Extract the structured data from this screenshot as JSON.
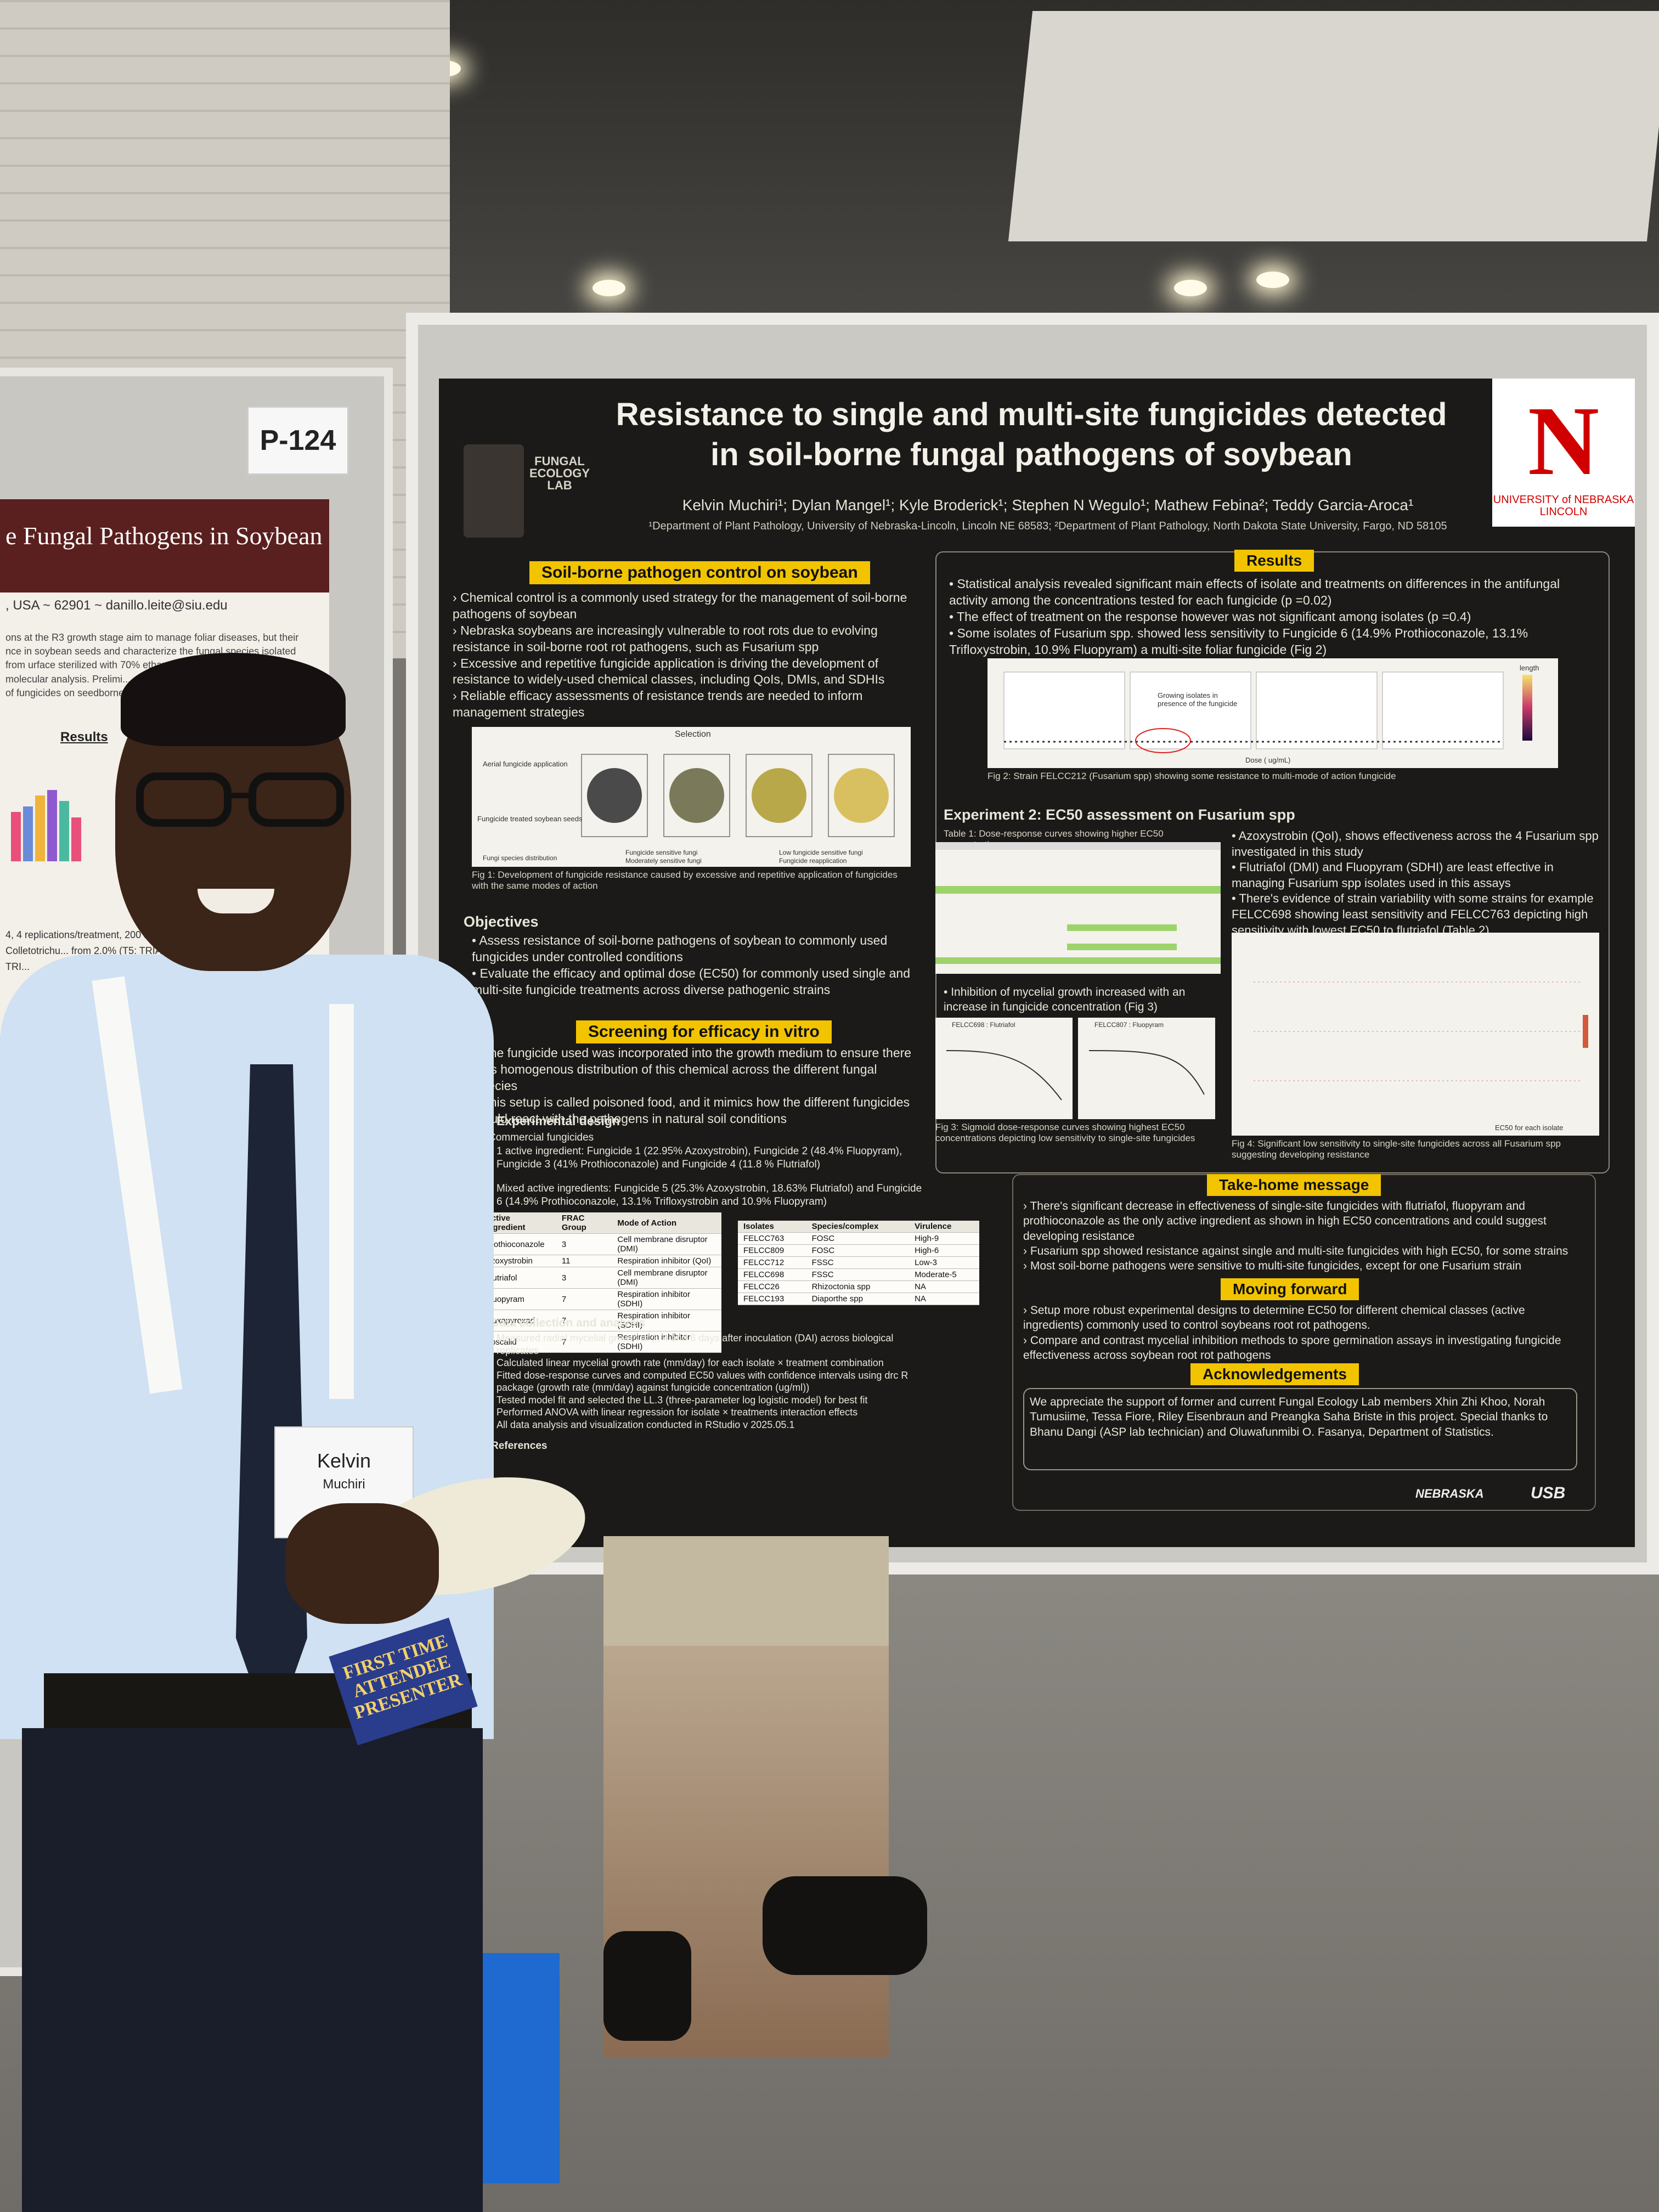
{
  "sign": {
    "label": "P-124"
  },
  "left_poster": {
    "title": "e Fungal Pathogens in Soybean",
    "contact": ", USA ~ 62901 ~ danillo.leite@siu.edu",
    "body": "ons at the R3 growth stage aim to manage foliar diseases, but their nce in soybean seeds and characterize the fungal species isolated from urface sterilized with 70% ethanol (1 min) and ... hology and molecular analysis. Prelimi... observed among treatments, sugges... of fungicides on seedborne fungi is cru...",
    "results": "Results",
    "notes": "4, 4 replications/treatment, 200 seeds t... ), Alternaria (0 – 4%), Colletotrichu... from 2.0% (T5: TRIAZOLE (Lim... ate) to 10.5% (T11: TRI..."
  },
  "poster": {
    "title_line1": "Resistance to single and multi-site fungicides detected",
    "title_line2": "in soil-borne fungal pathogens of soybean",
    "authors": "Kelvin Muchiri¹; Dylan Mangel¹; Kyle Broderick¹; Stephen N Wegulo¹; Mathew Febina²; Teddy Garcia-Aroca¹",
    "affiliations": "¹Department of Plant Pathology, University of Nebraska-Lincoln, Lincoln NE 68583; ²Department of Plant Pathology, North Dakota State University, Fargo, ND 58105",
    "lab_logo": "FUNGAL ECOLOGY LAB",
    "unl_logo": {
      "mark": "N",
      "text": "UNIVERSITY of NEBRASKA LINCOLN"
    },
    "section1": {
      "heading": "Soil-borne pathogen control on soybean",
      "bullets": [
        "Chemical control is a commonly used strategy for the management of soil-borne pathogens of soybean",
        "Nebraska soybeans are increasingly vulnerable to root rots due to evolving resistance in soil-borne root rot pathogens, such as Fusarium spp",
        "Excessive and repetitive fungicide application is driving the development of resistance to widely-used chemical classes, including QoIs, DMIs, and SDHIs",
        "Reliable efficacy assessments of resistance trends are needed to inform management strategies"
      ],
      "fig_caption": "Fig 1: Development of fungicide resistance caused by excessive and repetitive application of fungicides with the same modes of action",
      "fig_labels": [
        "Selection",
        "Aerial fungicide application",
        "Fungicide treated soybean seeds",
        "Fungi species distribution",
        "Fungicide sensitive fungi",
        "Moderately sensitive fungi",
        "Low fungicide sensitive fungi",
        "Fungicide reapplication"
      ]
    },
    "objectives": {
      "heading": "Objectives",
      "bullets": [
        "Assess resistance of soil-borne pathogens of soybean to commonly used fungicides under controlled conditions",
        "Evaluate the efficacy and optimal dose (EC50) for commonly used single and multi-site fungicide treatments across diverse pathogenic strains"
      ]
    },
    "screening": {
      "heading": "Screening for efficacy in vitro",
      "bullets": [
        "The fungicide used was incorporated into the growth medium to ensure there was homogenous distribution of this chemical across the different fungal species",
        "This setup is called poisoned food, and it mimics how the different fungicides would react with the pathogens in natural soil conditions"
      ],
      "design_heading": "Experimental design",
      "commercial": "Commercial fungicides",
      "single": "1 active ingredient: Fungicide 1 (22.95% Azoxystrobin), Fungicide 2 (48.4% Fluopyram), Fungicide 3 (41% Prothioconazole) and Fungicide 4 (11.8 % Flutriafol)",
      "mixed": "Mixed active ingredients: Fungicide 5 (25.3% Azoxystrobin, 18.63% Flutriafol) and Fungicide 6 (14.9% Prothioconazole, 13.1% Trifloxystrobin and 10.9% Fluopyram)",
      "ai_table": {
        "headers": [
          "Active ingredient",
          "FRAC Group",
          "Mode of Action"
        ],
        "rows": [
          [
            "Prothioconazole",
            "3",
            "Cell membrane disruptor (DMI)"
          ],
          [
            "Azoxystrobin",
            "11",
            "Respiration inhibitor (QoI)"
          ],
          [
            "Flutriafol",
            "3",
            "Cell membrane disruptor (DMI)"
          ],
          [
            "Fluopyram",
            "7",
            "Respiration inhibitor (SDHI)"
          ],
          [
            "Fluxapyroxad",
            "7",
            "Respiration inhibitor (SDHI)"
          ],
          [
            "Boscalid",
            "7",
            "Respiration inhibitor (SDHI)"
          ]
        ]
      },
      "isolate_table": {
        "headers": [
          "Isolates",
          "Species/complex",
          "Virulence"
        ],
        "rows": [
          [
            "FELCC763",
            "FOSC",
            "High-9"
          ],
          [
            "FELCC809",
            "FOSC",
            "High-6"
          ],
          [
            "FELCC712",
            "FSSC",
            "Low-3"
          ],
          [
            "FELCC698",
            "FSSC",
            "Moderate-5"
          ],
          [
            "FELCC26",
            "Rhizoctonia spp",
            "NA"
          ],
          [
            "FELCC193",
            "Diaporthe spp",
            "NA"
          ]
        ]
      },
      "data_heading": "Data collection and analysis",
      "data_bullets": [
        "Measured radial mycelial growth at 2, 4 and 6 days after inoculation (DAI) across biological replicates",
        "Calculated linear mycelial growth rate (mm/day) for each isolate × treatment combination",
        "Fitted dose-response curves and computed EC50 values with confidence intervals using drc R package (growth rate (mm/day) against fungicide concentration (ug/ml))",
        "Tested model fit and selected the LL.3 (three-parameter log logistic model) for best fit",
        "Performed ANOVA with linear regression for isolate × treatments interaction effects",
        "All data analysis and visualization conducted in RStudio v 2025.05.1"
      ],
      "references": "References"
    },
    "results": {
      "heading": "Results",
      "bullets": [
        "Statistical analysis revealed significant main effects of isolate and treatments on differences in the antifungal activity among the concentrations tested for each fungicide (p =0.02)",
        "The effect of treatment on the response however was not significant among isolates (p =0.4)",
        "Some isolates of Fusarium spp. showed less sensitivity to Fungicide 6 (14.9% Prothioconazole, 13.1% Trifloxystrobin, 10.9% Fluopyram) a multi-site foliar fungicide (Fig 2)"
      ],
      "fig2_annotation": "Growing isolates in presence of the fungicide",
      "fig2_xlabel": "Dose ( ug/mL)",
      "fig2_legend": "length",
      "fig2_caption": "Fig 2: Strain FELCC212 (Fusarium spp) showing some resistance to multi-mode of action fungicide"
    },
    "exp2": {
      "heading": "Experiment 2: EC50 assessment on Fusarium spp",
      "table_caption": "Table 1: Dose-response curves showing higher EC50 concentrations",
      "bullets": [
        "Azoxystrobin (QoI), shows effectiveness across the 4 Fusarium spp investigated in this study",
        "Flutriafol (DMI) and Fluopyram (SDHI) are least effective in managing Fusarium spp isolates used in this assays",
        "There's evidence of strain variability with some strains for example FELCC698 showing least sensitivity and FELCC763 depicting high sensitivity with lowest EC50 to flutriafol (Table 2)"
      ],
      "inhibition": "Inhibition of mycelial growth increased with an increase in fungicide concentration (Fig 3)",
      "fig3_caption": "Fig 3: Sigmoid dose-response curves showing highest EC50 concentrations depicting low sensitivity to single-site fungicides",
      "fig3_panels": [
        "FELCC698 : Flutriafol",
        "FELCC807 : Fluopyram"
      ],
      "fig4_caption": "Fig 4: Significant low sensitivity to single-site fungicides across all Fusarium spp suggesting developing resistance",
      "fig4_legend": "EC50 for each isolate"
    },
    "takehome": {
      "heading": "Take-home message",
      "bullets": [
        "There's significant decrease in effectiveness of single-site fungicides with flutriafol, fluopyram and prothioconazole as the only active ingredient as shown in high EC50 concentrations and could suggest developing resistance",
        "Fusarium spp showed resistance against single and multi-site fungicides with high EC50, for some strains",
        "Most soil-borne pathogens were sensitive to multi-site fungicides, except for one Fusarium strain"
      ]
    },
    "forward": {
      "heading": "Moving forward",
      "bullets": [
        "Setup more robust experimental designs to determine EC50 for different chemical classes (active ingredients) commonly used to control soybeans root rot pathogens.",
        "Compare and contrast mycelial inhibition methods to spore germination assays in investigating fungicide effectiveness across soybean root rot pathogens"
      ]
    },
    "ack": {
      "heading": "Acknowledgements",
      "text": "We appreciate the support of former and current Fungal Ecology Lab members Xhin Zhi Khoo, Norah Tumusiime, Tessa Fiore, Riley Eisenbraun and Preangka Saha Briste in this project. Special thanks to Bhanu Dangi (ASP lab technician) and Oluwafunmibi O. Fasanya, Department of Statistics."
    },
    "sponsors": [
      "NEBRASKA",
      "USB"
    ]
  },
  "person": {
    "badge_name": "Kelvin",
    "badge_sub": "Muchiri",
    "ribbon": "FIRST TIME ATTENDEE PRESENTER"
  },
  "colors": {
    "poster_bg": "#1b1a18",
    "heading_yellow": "#f2c400",
    "unl_red": "#d00000"
  }
}
